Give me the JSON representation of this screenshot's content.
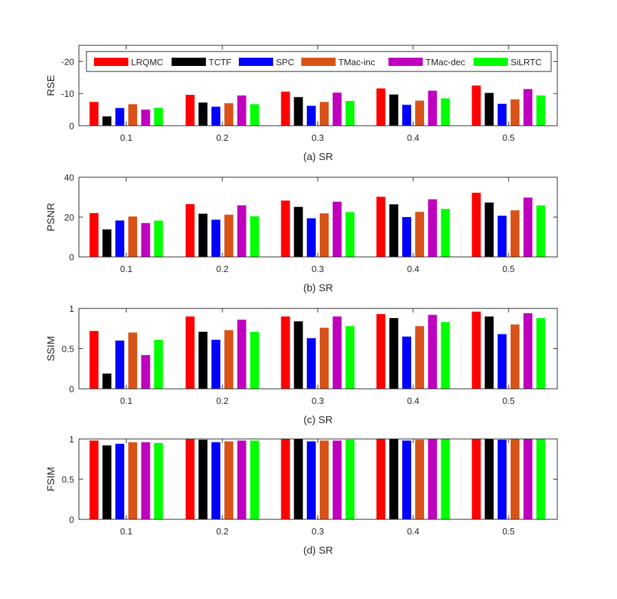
{
  "chart_data": [
    {
      "type": "bar",
      "xlabel": "(a) SR",
      "ylabel": "RSE",
      "ylim": [
        -25,
        0
      ],
      "y_reversed": true,
      "yticks": [
        0,
        -10,
        -20
      ],
      "ytick_labels": [
        "0",
        "-10",
        "-20"
      ],
      "categories": [
        "0.1",
        "0.2",
        "0.3",
        "0.4",
        "0.5"
      ],
      "legend": {
        "location": "top",
        "orientation": "horizontal"
      },
      "series": [
        {
          "name": "LRQMC",
          "color": "#ff0000",
          "values": [
            -7.4,
            -9.6,
            -10.6,
            -11.6,
            -12.5
          ]
        },
        {
          "name": "TCTF",
          "color": "#000000",
          "values": [
            -2.9,
            -7.2,
            -8.9,
            -9.7,
            -10.2
          ]
        },
        {
          "name": "SPC",
          "color": "#0000ff",
          "values": [
            -5.5,
            -5.9,
            -6.2,
            -6.5,
            -6.8
          ]
        },
        {
          "name": "TMac-inc",
          "color": "#d95319",
          "values": [
            -6.7,
            -7.0,
            -7.4,
            -7.8,
            -8.2
          ]
        },
        {
          "name": "TMac-dec",
          "color": "#bf00bf",
          "values": [
            -5.0,
            -9.4,
            -10.3,
            -10.9,
            -11.4
          ]
        },
        {
          "name": "SiLRTC",
          "color": "#00ff00",
          "values": [
            -5.6,
            -6.7,
            -7.7,
            -8.5,
            -9.4
          ]
        }
      ]
    },
    {
      "type": "bar",
      "xlabel": "(b) SR",
      "ylabel": "PSNR",
      "ylim": [
        0,
        40
      ],
      "yticks": [
        0,
        20,
        40
      ],
      "ytick_labels": [
        "0",
        "20",
        "40"
      ],
      "categories": [
        "0.1",
        "0.2",
        "0.3",
        "0.4",
        "0.5"
      ],
      "series": [
        {
          "name": "LRQMC",
          "color": "#ff0000",
          "values": [
            22.0,
            26.5,
            28.3,
            30.2,
            32.2
          ]
        },
        {
          "name": "TCTF",
          "color": "#000000",
          "values": [
            13.8,
            21.7,
            25.1,
            26.4,
            27.3
          ]
        },
        {
          "name": "SPC",
          "color": "#0000ff",
          "values": [
            18.3,
            18.7,
            19.4,
            20.0,
            20.7
          ]
        },
        {
          "name": "TMac-inc",
          "color": "#d95319",
          "values": [
            20.3,
            21.2,
            21.9,
            22.6,
            23.4
          ]
        },
        {
          "name": "TMac-dec",
          "color": "#bf00bf",
          "values": [
            17.0,
            25.9,
            27.7,
            28.9,
            29.8
          ]
        },
        {
          "name": "SiLRTC",
          "color": "#00ff00",
          "values": [
            18.2,
            20.4,
            22.5,
            24.1,
            25.9
          ]
        }
      ]
    },
    {
      "type": "bar",
      "xlabel": "(c) SR",
      "ylabel": "SSIM",
      "ylim": [
        0,
        1
      ],
      "yticks": [
        0,
        0.5,
        1
      ],
      "ytick_labels": [
        "0",
        "0.5",
        "1"
      ],
      "categories": [
        "0.1",
        "0.2",
        "0.3",
        "0.4",
        "0.5"
      ],
      "series": [
        {
          "name": "LRQMC",
          "color": "#ff0000",
          "values": [
            0.72,
            0.9,
            0.9,
            0.93,
            0.96
          ]
        },
        {
          "name": "TCTF",
          "color": "#000000",
          "values": [
            0.19,
            0.71,
            0.84,
            0.88,
            0.9
          ]
        },
        {
          "name": "SPC",
          "color": "#0000ff",
          "values": [
            0.6,
            0.61,
            0.63,
            0.65,
            0.68
          ]
        },
        {
          "name": "TMac-inc",
          "color": "#d95319",
          "values": [
            0.7,
            0.73,
            0.76,
            0.78,
            0.8
          ]
        },
        {
          "name": "TMac-dec",
          "color": "#bf00bf",
          "values": [
            0.42,
            0.86,
            0.9,
            0.92,
            0.94
          ]
        },
        {
          "name": "SiLRTC",
          "color": "#00ff00",
          "values": [
            0.61,
            0.71,
            0.78,
            0.83,
            0.88
          ]
        }
      ]
    },
    {
      "type": "bar",
      "xlabel": "(d) SR",
      "ylabel": "FSIM",
      "ylim": [
        0,
        1
      ],
      "yticks": [
        0,
        0.5,
        1
      ],
      "ytick_labels": [
        "0",
        "0.5",
        "1"
      ],
      "categories": [
        "0.1",
        "0.2",
        "0.3",
        "0.4",
        "0.5"
      ],
      "series": [
        {
          "name": "LRQMC",
          "color": "#ff0000",
          "values": [
            0.98,
            1.0,
            1.0,
            1.0,
            1.0
          ]
        },
        {
          "name": "TCTF",
          "color": "#000000",
          "values": [
            0.92,
            0.99,
            1.0,
            1.0,
            1.0
          ]
        },
        {
          "name": "SPC",
          "color": "#0000ff",
          "values": [
            0.94,
            0.96,
            0.97,
            0.98,
            0.99
          ]
        },
        {
          "name": "TMac-inc",
          "color": "#d95319",
          "values": [
            0.96,
            0.97,
            0.98,
            0.99,
            1.0
          ]
        },
        {
          "name": "TMac-dec",
          "color": "#bf00bf",
          "values": [
            0.96,
            0.98,
            0.98,
            1.0,
            1.0
          ]
        },
        {
          "name": "SiLRTC",
          "color": "#00ff00",
          "values": [
            0.95,
            0.98,
            0.99,
            1.0,
            1.0
          ]
        }
      ]
    }
  ]
}
